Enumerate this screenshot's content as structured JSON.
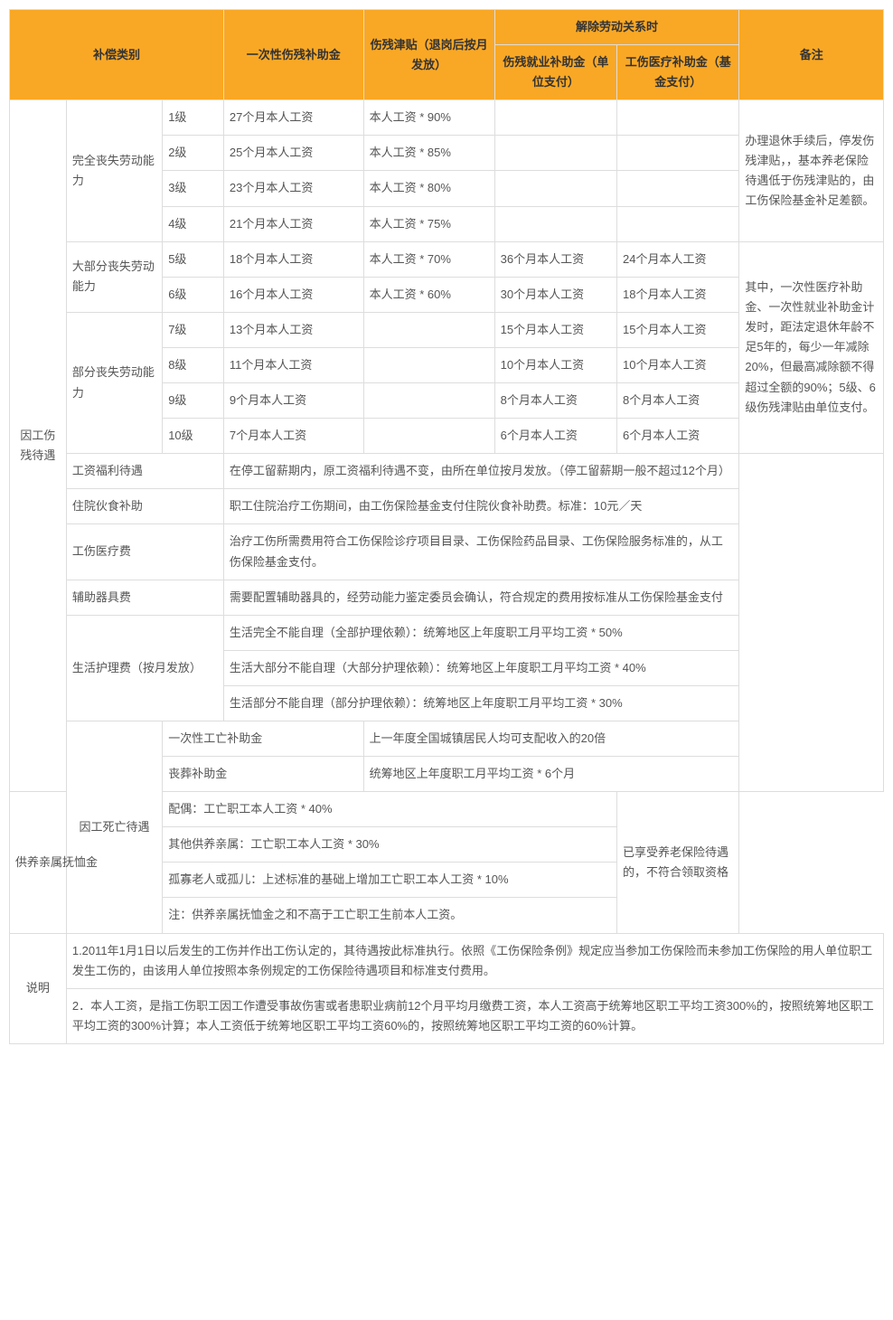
{
  "header": {
    "category": "补偿类别",
    "lump_sum": "一次性伤残补助金",
    "allowance": "伤残津贴（退岗后按月发放）",
    "termination": "解除劳动关系时",
    "employment_subsidy": "伤残就业补助金（单位支付）",
    "medical_subsidy": "工伤医疗补助金（基金支付）",
    "remark": "备注"
  },
  "cat1": {
    "name": "因工伤残待遇",
    "g1": {
      "name": "完全丧失劳动能力",
      "r1": {
        "lvl": "1级",
        "lump": "27个月本人工资",
        "allow": "本人工资 * 90%"
      },
      "r2": {
        "lvl": "2级",
        "lump": "25个月本人工资",
        "allow": "本人工资 * 85%"
      },
      "r3": {
        "lvl": "3级",
        "lump": "23个月本人工资",
        "allow": "本人工资 * 80%"
      },
      "r4": {
        "lvl": "4级",
        "lump": "21个月本人工资",
        "allow": "本人工资 * 75%"
      },
      "remark": "办理退休手续后，停发伤残津贴，，基本养老保险待遇低于伤残津贴的，由工伤保险基金补足差额。"
    },
    "g2": {
      "name": "大部分丧失劳动能力",
      "r5": {
        "lvl": "5级",
        "lump": "18个月本人工资",
        "allow": "本人工资 * 70%",
        "emp": "36个月本人工资",
        "med": "24个月本人工资"
      },
      "r6": {
        "lvl": "6级",
        "lump": "16个月本人工资",
        "allow": "本人工资 * 60%",
        "emp": "30个月本人工资",
        "med": "18个月本人工资"
      }
    },
    "g3": {
      "name": "部分丧失劳动能力",
      "r7": {
        "lvl": "7级",
        "lump": "13个月本人工资",
        "emp": "15个月本人工资",
        "med": "15个月本人工资"
      },
      "r8": {
        "lvl": "8级",
        "lump": "11个月本人工资",
        "emp": "10个月本人工资",
        "med": "10个月本人工资"
      },
      "r9": {
        "lvl": "9级",
        "lump": "9个月本人工资",
        "emp": "8个月本人工资",
        "med": "8个月本人工资"
      },
      "r10": {
        "lvl": "10级",
        "lump": "7个月本人工资",
        "emp": "6个月本人工资",
        "med": "6个月本人工资"
      },
      "remark": "其中，一次性医疗补助金、一次性就业补助金计发时，距法定退休年龄不足5年的，每少一年减除20%，但最高减除额不得超过全额的90%；5级、6级伤残津贴由单位支付。"
    },
    "salary": {
      "name": "工资福利待遇",
      "desc": "在停工留薪期内，原工资福利待遇不变，由所在单位按月发放。（停工留薪期一般不超过12个月）"
    },
    "meal": {
      "name": "住院伙食补助",
      "desc": "职工住院治疗工伤期间，由工伤保险基金支付住院伙食补助费。标准：10元／天"
    },
    "medfee": {
      "name": "工伤医疗费",
      "desc": "治疗工伤所需费用符合工伤保险诊疗项目目录、工伤保险药品目录、工伤保险服务标准的，从工伤保险基金支付。"
    },
    "aid": {
      "name": "辅助器具费",
      "desc": "需要配置辅助器具的，经劳动能力鉴定委员会确认，符合规定的费用按标准从工伤保险基金支付"
    },
    "care": {
      "name": "生活护理费（按月发放）",
      "full": "生活完全不能自理（全部护理依赖）：统筹地区上年度职工月平均工资 * 50%",
      "most": "生活大部分不能自理（大部分护理依赖）：统筹地区上年度职工月平均工资 * 40%",
      "part": "生活部分不能自理（部分护理依赖）：统筹地区上年度职工月平均工资 * 30%"
    }
  },
  "cat2": {
    "name": "因工死亡待遇",
    "death": {
      "name": "一次性工亡补助金",
      "desc": "上一年度全国城镇居民人均可支配收入的20倍"
    },
    "funeral": {
      "name": "丧葬补助金",
      "desc": "统筹地区上年度职工月平均工资 * 6个月"
    },
    "dep": {
      "name": "供养亲属抚恤金",
      "spouse": "配偶：工亡职工本人工资 * 40%",
      "other": "其他供养亲属：工亡职工本人工资 * 30%",
      "orphan": "孤寡老人或孤儿：上述标准的基础上增加工亡职工本人工资 * 10%",
      "note": "注：供养亲属抚恤金之和不高于工亡职工生前本人工资。",
      "remark": "已享受养老保险待遇的，不符合领取资格"
    }
  },
  "notes": {
    "name": "说明",
    "n1": "1.2011年1月1日以后发生的工伤并作出工伤认定的，其待遇按此标准执行。依照《工伤保险条例》规定应当参加工伤保险而未参加工伤保险的用人单位职工发生工伤的，由该用人单位按照本条例规定的工伤保险待遇项目和标准支付费用。",
    "n2": "2．本人工资，是指工伤职工因工作遭受事故伤害或者患职业病前12个月平均月缴费工资，本人工资高于统筹地区职工平均工资300%的，按照统筹地区职工平均工资的300%计算；本人工资低于统筹地区职工平均工资60%的，按照统筹地区职工平均工资的60%计算。"
  }
}
